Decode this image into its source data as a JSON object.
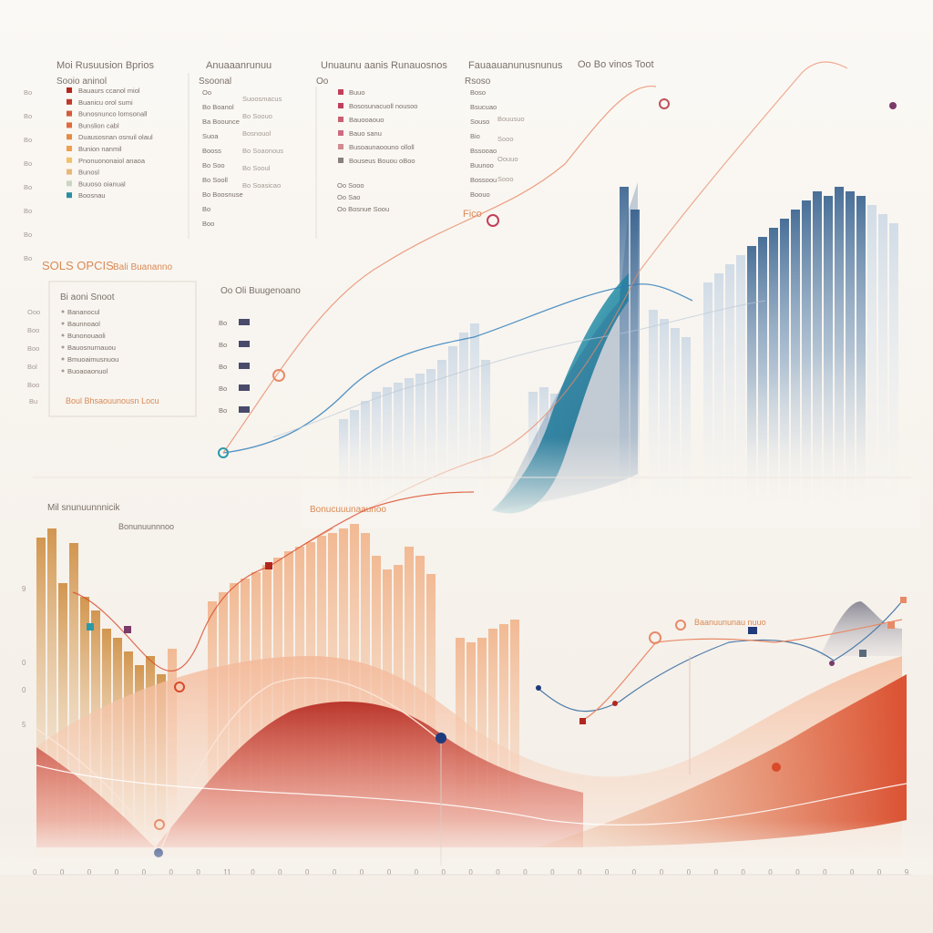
{
  "colors": {
    "background": "#f8f5f0",
    "blue_dark": "#1f4f82",
    "blue_light": "#b8cde0",
    "teal": "#1a8aa0",
    "red_dark": "#b3261e",
    "orange": "#e8884a",
    "peach": "#f2c2a0",
    "salmon": "#e8765a",
    "navy_marker": "#1f3a7a",
    "purple_marker": "#7a3a6a",
    "text": "#7a6f68",
    "accent_text": "#d98a55"
  },
  "legends": {
    "col1": {
      "title": "Moi Rusuusion Bprios",
      "subtitle": "Sooio aninol",
      "rows": [
        {
          "label": "Bauaurs ccanol miol",
          "color": "#b3261e"
        },
        {
          "label": "Buanicu orol sumi",
          "color": "#c0392b"
        },
        {
          "label": "Bunosnunco lomsonall",
          "color": "#d35b3b"
        },
        {
          "label": "Bunslion cabl",
          "color": "#e26a3c"
        },
        {
          "label": "Duausosnan osnuil olaul",
          "color": "#e58a43"
        },
        {
          "label": "Bunion nanmil",
          "color": "#f0a050"
        },
        {
          "label": "Pnonuononaiol anaoa",
          "color": "#f4c06a"
        },
        {
          "label": "Bunosl",
          "color": "#e8b878"
        },
        {
          "label": "Buuoso oianual",
          "color": "#c9d6c0"
        },
        {
          "label": "Boosnau",
          "color": "#2a8fa0"
        }
      ],
      "values": [
        "Bo",
        "Bo",
        "Bo",
        "Bo",
        "Bo",
        "Bo",
        "Bo",
        "Bo"
      ]
    },
    "col2": {
      "title": "Anuaaanrunuu",
      "subtitle": "Ssoonal",
      "rows": [
        "Oo",
        "Bo Boanol",
        "Ba Boounce",
        "Suoa",
        "Booss",
        "Bo Soo",
        "Bo Sooll",
        "Bo Boosnuse",
        "Bo",
        "Boo"
      ],
      "notes": [
        "Suoosmacus",
        "Bo Soouo",
        "Bosnouol",
        "Bo Soaonous",
        "Bo Sooul",
        "Bo Soasicao"
      ]
    },
    "col3": {
      "title": "Unuaunu aanis Runauosnos",
      "subtitle": "Oo",
      "rows": [
        {
          "label": "Buuo",
          "color": "#c0405a"
        },
        {
          "label": "Bososunacuoll nousoo",
          "color": "#c0405a"
        },
        {
          "label": "Bauooaouo",
          "color": "#c86070"
        },
        {
          "label": "Bauo sanu",
          "color": "#d06a80"
        },
        {
          "label": "Busoaunaoouno olloll",
          "color": "#d08a90"
        },
        {
          "label": "Bouseus Bouou oBoo",
          "color": "#8a7f7a"
        }
      ],
      "extra": [
        "Oo Sooo",
        "Oo Sao",
        "Oo Bosnue Soou"
      ]
    },
    "col4": {
      "title": "Fauaauanunusnunus",
      "subtitle": "Rsoso",
      "rows": [
        "Boso",
        "Bsucuao",
        "Souso",
        "Bio",
        "Bssooao",
        "Buunoo",
        "Bossoou",
        "Boouo"
      ],
      "notes": [
        "Bouusuo",
        "Sooo",
        "Oouuo",
        "Sooo"
      ]
    },
    "col5": {
      "title": "Oo Bo vinos Toot"
    }
  },
  "middle_legend": {
    "heading": "SOLS OPCIS",
    "heading2": "Bali Buananno",
    "box_title": "Bi aoni Snoot",
    "rows": [
      "Bananocul",
      "Baunnoaol",
      "Bunonouaoli",
      "Bauosnurnauou",
      "Bmuoaimusnuou",
      "Buoaoaonuol"
    ],
    "last_row": "Boul Bhsaouunousn Locu",
    "side": [
      "Ooo",
      "Boo",
      "Boo",
      "Bol",
      "Boo"
    ],
    "side_last": "Bu"
  },
  "middle_series": {
    "title": "Oo Oli Buugenoano",
    "rows": [
      "Bo",
      "Bo",
      "Bo",
      "Bo",
      "Bo"
    ]
  },
  "bottom_chart": {
    "title": "Mil snunuunnnicik",
    "subtitle": "Bonunuunnnoo",
    "annotation": "Bonucuuunaaunoo",
    "annotation2": "Baanuununau nuuo",
    "y_ticks": [
      "9",
      "0",
      "0",
      "5"
    ],
    "x_ticks": [
      "0",
      "0",
      "0",
      "0",
      "0",
      "0",
      "0",
      "11",
      "0",
      "0",
      "0",
      "0",
      "0",
      "0",
      "0",
      "0",
      "0",
      "0",
      "0",
      "0",
      "0",
      "0",
      "0",
      "0",
      "0",
      "0",
      "0",
      "0",
      "0",
      "0",
      "0",
      "0",
      "9"
    ]
  },
  "top_right_label": "Fico"
}
